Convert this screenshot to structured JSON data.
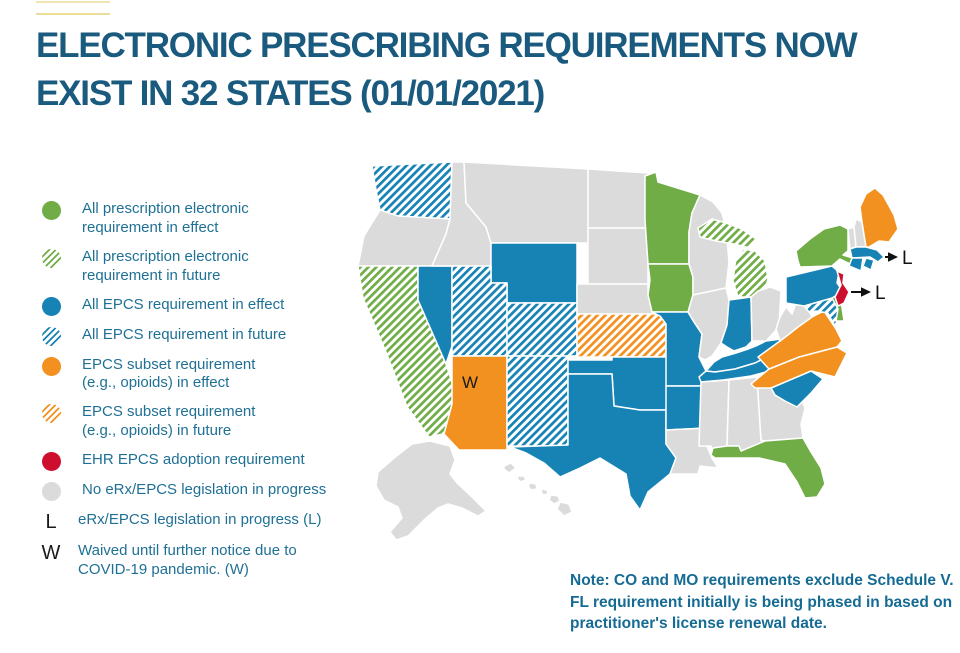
{
  "page": {
    "title": "ELECTRONIC PRESCRIBING REQUIREMENTS NOW\nEXIST IN 32 STATES (01/01/2021)",
    "note": "Note: CO and MO requirements exclude Schedule V.\nFL requirement initially is being phased in based on\npractitioner's license renewal date."
  },
  "colors": {
    "green": "#71AD47",
    "blue": "#1783B4",
    "orange": "#F29120",
    "red": "#CE0E2D",
    "gray": "#DBDBDB",
    "title_text": "#1A5A7E",
    "body_text": "#1F7096",
    "note_text": "#156B93",
    "gold_line": "#EBDC96",
    "annotation_text": "#1A1A1A"
  },
  "legend": {
    "items": [
      {
        "id": "rx_effect",
        "type": "circle",
        "color": "green",
        "pattern": false,
        "label": "All prescription electronic\nrequirement in effect"
      },
      {
        "id": "rx_future",
        "type": "circle",
        "color": "green",
        "pattern": true,
        "label": "All prescription electronic\nrequirement in future"
      },
      {
        "id": "epcs_effect",
        "type": "circle",
        "color": "blue",
        "pattern": false,
        "label": "All EPCS requirement in effect"
      },
      {
        "id": "epcs_future",
        "type": "circle",
        "color": "blue",
        "pattern": true,
        "label": "All EPCS requirement in future"
      },
      {
        "id": "subset_effect",
        "type": "circle",
        "color": "orange",
        "pattern": false,
        "label": "EPCS subset requirement\n(e.g., opioids) in effect"
      },
      {
        "id": "subset_future",
        "type": "circle",
        "color": "orange",
        "pattern": true,
        "label": "EPCS subset requirement\n(e.g., opioids) in future"
      },
      {
        "id": "ehr_adoption",
        "type": "circle",
        "color": "red",
        "pattern": false,
        "label": "EHR EPCS adoption requirement"
      },
      {
        "id": "none",
        "type": "circle",
        "color": "gray",
        "pattern": false,
        "label": "No eRx/EPCS legislation in progress"
      },
      {
        "id": "legislation",
        "type": "letter",
        "letter": "L",
        "label": "eRx/EPCS legislation in progress (L)"
      },
      {
        "id": "waived",
        "type": "letter",
        "letter": "W",
        "label": "Waived until further notice due to\nCOVID-19 pandemic. (W)"
      }
    ]
  },
  "map": {
    "categories": {
      "rx_effect": {
        "color": "green",
        "pattern": false
      },
      "rx_future": {
        "color": "green",
        "pattern": true
      },
      "epcs_effect": {
        "color": "blue",
        "pattern": false
      },
      "epcs_future": {
        "color": "blue",
        "pattern": true
      },
      "subset_effect": {
        "color": "orange",
        "pattern": false
      },
      "subset_future": {
        "color": "orange",
        "pattern": true
      },
      "ehr_adoption": {
        "color": "red",
        "pattern": false
      },
      "none": {
        "color": "gray",
        "pattern": false
      }
    },
    "states": [
      {
        "id": "WA",
        "name": "Washington",
        "category": "epcs_future"
      },
      {
        "id": "OR",
        "name": "Oregon",
        "category": "none"
      },
      {
        "id": "CA",
        "name": "California",
        "category": "rx_future"
      },
      {
        "id": "NV",
        "name": "Nevada",
        "category": "epcs_effect"
      },
      {
        "id": "ID",
        "name": "Idaho",
        "category": "none"
      },
      {
        "id": "MT",
        "name": "Montana",
        "category": "none"
      },
      {
        "id": "WY",
        "name": "Wyoming",
        "category": "epcs_effect"
      },
      {
        "id": "UT",
        "name": "Utah",
        "category": "epcs_future"
      },
      {
        "id": "CO",
        "name": "Colorado",
        "category": "epcs_future"
      },
      {
        "id": "AZ",
        "name": "Arizona",
        "category": "subset_effect"
      },
      {
        "id": "NM",
        "name": "New Mexico",
        "category": "epcs_future"
      },
      {
        "id": "ND",
        "name": "North Dakota",
        "category": "none"
      },
      {
        "id": "SD",
        "name": "South Dakota",
        "category": "none"
      },
      {
        "id": "NE",
        "name": "Nebraska",
        "category": "none"
      },
      {
        "id": "KS",
        "name": "Kansas",
        "category": "subset_future"
      },
      {
        "id": "OK",
        "name": "Oklahoma",
        "category": "epcs_effect"
      },
      {
        "id": "TX",
        "name": "Texas",
        "category": "epcs_effect"
      },
      {
        "id": "MN",
        "name": "Minnesota",
        "category": "rx_effect"
      },
      {
        "id": "IA",
        "name": "Iowa",
        "category": "rx_effect"
      },
      {
        "id": "MO",
        "name": "Missouri",
        "category": "epcs_effect"
      },
      {
        "id": "AR",
        "name": "Arkansas",
        "category": "epcs_effect"
      },
      {
        "id": "LA",
        "name": "Louisiana",
        "category": "none"
      },
      {
        "id": "WI",
        "name": "Wisconsin",
        "category": "none"
      },
      {
        "id": "IL",
        "name": "Illinois",
        "category": "none"
      },
      {
        "id": "MIUP",
        "name": "Michigan (Upper Peninsula)",
        "category": "rx_future"
      },
      {
        "id": "MILP",
        "name": "Michigan",
        "category": "rx_future"
      },
      {
        "id": "IN",
        "name": "Indiana",
        "category": "epcs_effect"
      },
      {
        "id": "OH",
        "name": "Ohio",
        "category": "none"
      },
      {
        "id": "KY",
        "name": "Kentucky",
        "category": "epcs_effect"
      },
      {
        "id": "TN",
        "name": "Tennessee",
        "category": "epcs_effect"
      },
      {
        "id": "MS",
        "name": "Mississippi",
        "category": "none"
      },
      {
        "id": "AL",
        "name": "Alabama",
        "category": "none"
      },
      {
        "id": "GA",
        "name": "Georgia",
        "category": "none"
      },
      {
        "id": "FL",
        "name": "Florida",
        "category": "rx_effect"
      },
      {
        "id": "SC",
        "name": "South Carolina",
        "category": "epcs_effect"
      },
      {
        "id": "NC",
        "name": "North Carolina",
        "category": "subset_effect"
      },
      {
        "id": "VA",
        "name": "Virginia",
        "category": "subset_effect"
      },
      {
        "id": "WV",
        "name": "West Virginia",
        "category": "none"
      },
      {
        "id": "MD",
        "name": "Maryland",
        "category": "epcs_future"
      },
      {
        "id": "DE",
        "name": "Delaware",
        "category": "rx_effect"
      },
      {
        "id": "PA",
        "name": "Pennsylvania",
        "category": "epcs_effect"
      },
      {
        "id": "NJ",
        "name": "New Jersey",
        "category": "ehr_adoption"
      },
      {
        "id": "NY",
        "name": "New York",
        "category": "rx_effect"
      },
      {
        "id": "VT",
        "name": "Vermont",
        "category": "none"
      },
      {
        "id": "NH",
        "name": "New Hampshire",
        "category": "none"
      },
      {
        "id": "ME",
        "name": "Maine",
        "category": "subset_effect"
      },
      {
        "id": "MA",
        "name": "Massachusetts",
        "category": "epcs_effect"
      },
      {
        "id": "RI",
        "name": "Rhode Island",
        "category": "epcs_effect"
      },
      {
        "id": "CT",
        "name": "Connecticut",
        "category": "epcs_effect"
      },
      {
        "id": "AK",
        "name": "Alaska",
        "category": "none"
      },
      {
        "id": "HI",
        "name": "Hawaii",
        "category": "none"
      }
    ],
    "annotations": {
      "waived_letter": "W",
      "waived_state": "AZ",
      "arrow_label": "L",
      "arrow_states": [
        "MA",
        "NJ"
      ]
    }
  }
}
